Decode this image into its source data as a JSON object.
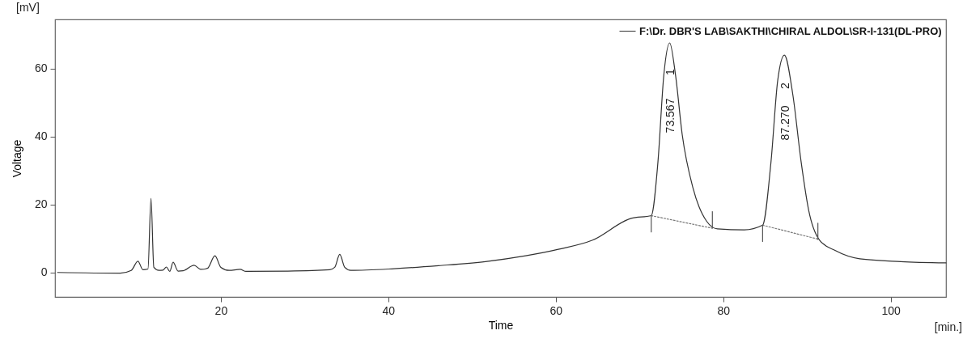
{
  "chart_data": {
    "type": "line",
    "xlabel": "Time",
    "ylabel": "Voltage",
    "legend": "top right",
    "xlim": [
      0.2,
      106.6
    ],
    "ylim": [
      -7.2,
      74.4
    ],
    "xticks": [
      20,
      40,
      60,
      80,
      100
    ],
    "yticks": [
      0,
      20,
      40,
      60
    ],
    "annotations": [
      "[mV]",
      "[min.]",
      "73.567",
      "1",
      "87.270",
      "2"
    ],
    "series": [
      {
        "name": "F:\\Dr. DBR'S LAB\\SAKTHI\\CHIRAL ALDOL\\SR-I-131(DL-PRO)",
        "color": "#333333",
        "x": [
          0.5,
          8,
          9.3,
          10.1,
          10.7,
          11.3,
          11.66,
          12.0,
          12.6,
          13.1,
          13.5,
          13.9,
          14.3,
          14.9,
          15.5,
          16.8,
          17.6,
          18.4,
          19.3,
          20.0,
          21.0,
          22.3,
          23.0,
          28,
          33,
          33.6,
          34.2,
          34.8,
          35.5,
          40.7,
          46,
          51.6,
          56.4,
          60.3,
          64.4,
          69,
          71.4,
          72.2,
          72.9,
          73.6,
          74.3,
          75.1,
          76.4,
          78,
          79.3,
          82.5,
          84.7,
          85.7,
          86.5,
          87.3,
          88.3,
          89.3,
          90.2,
          91.5,
          93.4,
          96.3,
          101.2,
          106.6
        ],
        "values": [
          0,
          -0.2,
          0.6,
          3.3,
          0.8,
          1.0,
          21.8,
          1.5,
          0.6,
          0.7,
          1.6,
          0.3,
          3.0,
          0.4,
          0.5,
          2.1,
          0.9,
          1.2,
          4.9,
          1.5,
          0.6,
          0.9,
          0.3,
          0.4,
          0.8,
          1.5,
          5.3,
          1.5,
          0.6,
          1.1,
          2.0,
          3.2,
          4.9,
          6.8,
          9.5,
          15.9,
          16.7,
          32.5,
          58,
          67.5,
          58,
          40.5,
          24.7,
          15.1,
          12.8,
          12.5,
          13.9,
          32.5,
          56.4,
          63.9,
          52.4,
          32.5,
          18.3,
          9.5,
          6.4,
          4.0,
          3.2,
          2.8
        ]
      },
      {
        "color": "#777777",
        "line_style": "dotted",
        "x": [
          71.4,
          78.7
        ],
        "values": [
          16.7,
          13.0
        ]
      },
      {
        "color": "#777777",
        "line_style": "dotted",
        "x": [
          84.7,
          91.3
        ],
        "values": [
          13.9,
          9.8
        ]
      },
      {
        "color": "#555555",
        "x": [
          71.4,
          71.4
        ],
        "values": [
          11.9,
          16.7
        ]
      },
      {
        "color": "#555555",
        "x": [
          78.7,
          78.7
        ],
        "values": [
          13.1,
          17.9
        ]
      },
      {
        "color": "#555555",
        "x": [
          84.7,
          84.7
        ],
        "values": [
          9.1,
          13.9
        ]
      },
      {
        "color": "#555555",
        "x": [
          91.3,
          91.3
        ],
        "values": [
          9.7,
          14.5
        ]
      }
    ]
  }
}
